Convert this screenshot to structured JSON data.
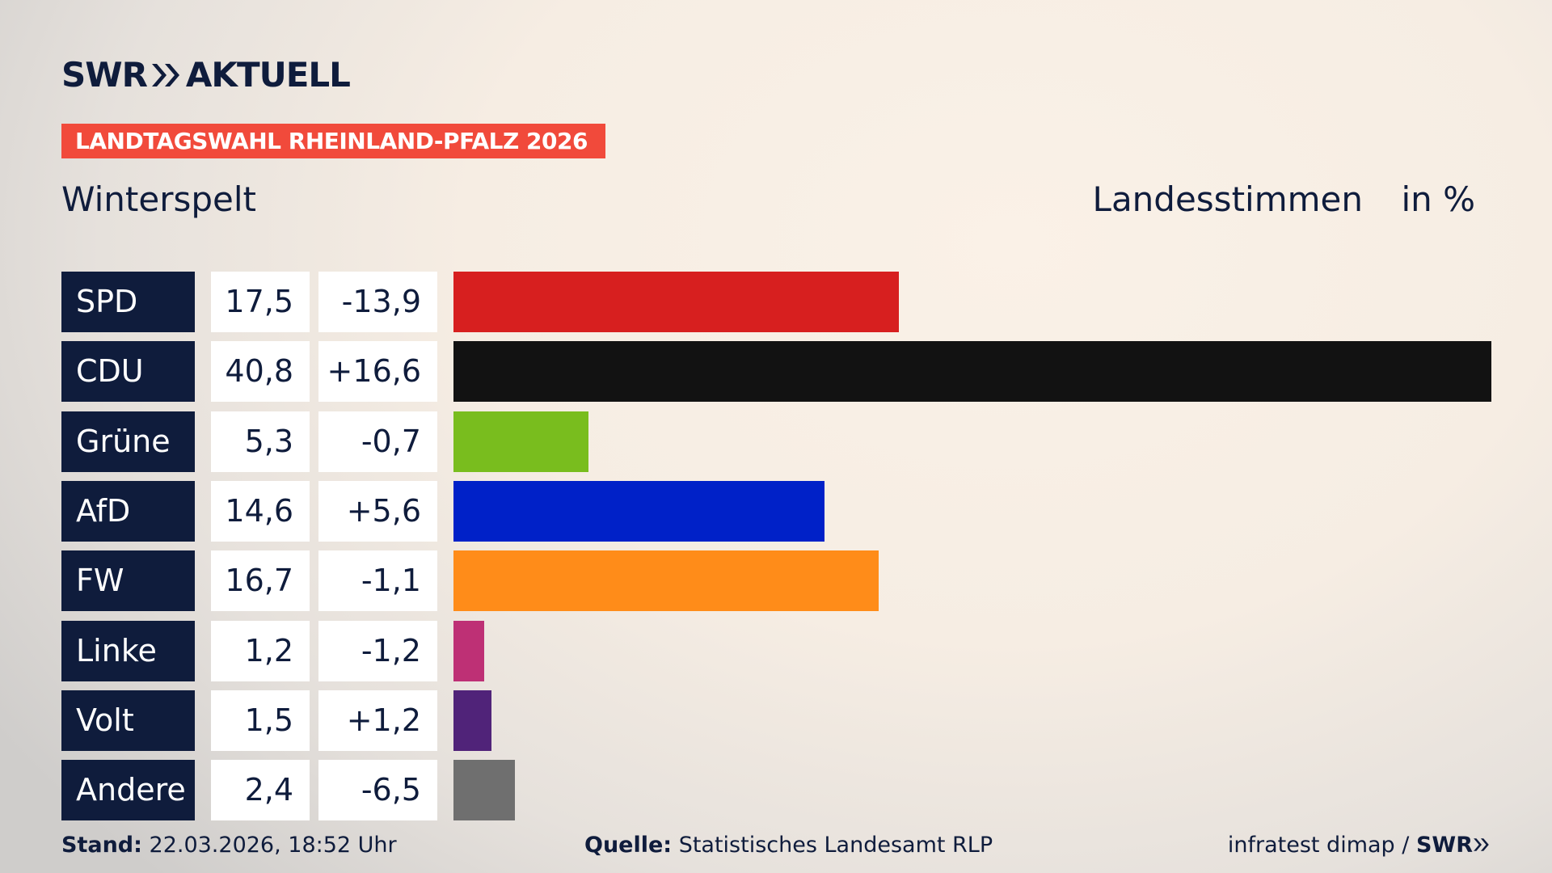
{
  "header": {
    "logo": "SWR",
    "logo_suffix": "AKTUELL",
    "tag": "LANDTAGSWAHL RHEINLAND-PFALZ 2026"
  },
  "chart_data": {
    "type": "bar",
    "title": "Winterspelt",
    "subtitle": "Landesstimmen",
    "unit": "in %",
    "categories": [
      "SPD",
      "CDU",
      "Grüne",
      "AfD",
      "FW",
      "Linke",
      "Volt",
      "Andere"
    ],
    "values": [
      17.5,
      40.8,
      5.3,
      14.6,
      16.7,
      1.2,
      1.5,
      2.4
    ],
    "value_labels": [
      "17,5",
      "40,8",
      "5,3",
      "14,6",
      "16,7",
      "1,2",
      "1,5",
      "2,4"
    ],
    "changes": [
      -13.9,
      16.6,
      -0.7,
      5.6,
      -1.1,
      -1.2,
      1.2,
      -6.5
    ],
    "change_labels": [
      "-13,9",
      "+16,6",
      "-0,7",
      "+5,6",
      "-1,1",
      "-1,2",
      "+1,2",
      "-6,5"
    ],
    "colors": [
      "#d71f1f",
      "#121212",
      "#79bd1e",
      "#0021c8",
      "#ff8c19",
      "#be3075",
      "#502379",
      "#6f6f6f"
    ]
  },
  "footer": {
    "stand_label": "Stand:",
    "stand_value": "22.03.2026, 18:52 Uhr",
    "source_label": "Quelle:",
    "source_value": "Statistisches Landesamt RLP",
    "credit": "infratest dimap /",
    "credit_logo": "SWR"
  }
}
